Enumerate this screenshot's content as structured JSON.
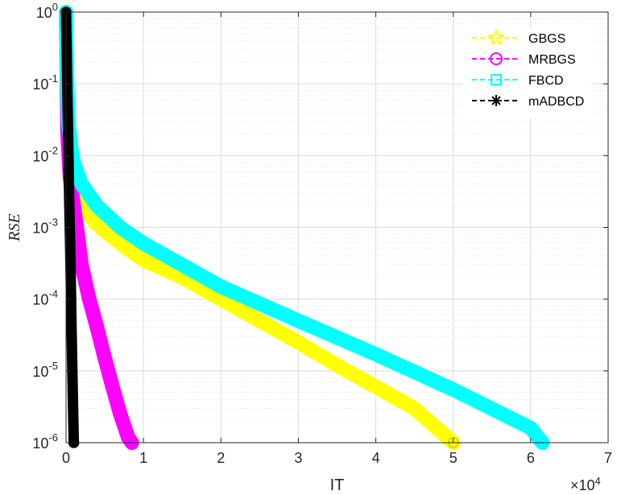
{
  "chart_data": {
    "type": "line",
    "title": "",
    "xlabel": "IT",
    "ylabel": "$RSE$",
    "x_multiplier_label": "×10",
    "x_multiplier_exponent": "4",
    "x_scale": 10000,
    "xlim": [
      0,
      70000
    ],
    "ylim": [
      1e-06,
      1
    ],
    "yscale": "log",
    "grid": true,
    "minor_grid": true,
    "x_ticks": [
      0,
      10000,
      20000,
      30000,
      40000,
      50000,
      60000,
      70000
    ],
    "x_tick_labels": [
      "0",
      "1",
      "2",
      "3",
      "4",
      "5",
      "6",
      "7"
    ],
    "y_ticks": [
      1,
      0.1,
      0.01,
      0.001,
      0.0001,
      1e-05,
      1e-06
    ],
    "y_tick_base": "10",
    "y_tick_exponents": [
      "0",
      "-1",
      "-2",
      "-3",
      "-4",
      "-5",
      "-6"
    ],
    "legend_position": "top-right",
    "series": [
      {
        "name": "GBGS",
        "color": "#ffff00",
        "marker": "pentagram",
        "line_style": "dashed",
        "x": [
          0,
          100,
          300,
          600,
          1000,
          2000,
          4000,
          7000,
          10000,
          15000,
          20000,
          25000,
          30000,
          35000,
          40000,
          45000,
          50000
        ],
        "y": [
          1,
          0.1,
          0.02,
          0.007,
          0.0035,
          0.002,
          0.0011,
          0.0006,
          0.00035,
          0.0002,
          0.0001,
          5e-05,
          2.5e-05,
          1.2e-05,
          6e-06,
          3e-06,
          1e-06
        ]
      },
      {
        "name": "MRBGS",
        "color": "#ff00ff",
        "marker": "circle",
        "line_style": "dashed",
        "x": [
          0,
          200,
          500,
          1000,
          1500,
          2000,
          3000,
          4000,
          5000,
          6000,
          7000,
          8000,
          8500
        ],
        "y": [
          1,
          0.02,
          0.005,
          0.002,
          0.0008,
          0.0003,
          0.0001,
          4e-05,
          1.5e-05,
          6e-06,
          2.5e-06,
          1.2e-06,
          1e-06
        ]
      },
      {
        "name": "FBCD",
        "color": "#00ffff",
        "marker": "square",
        "line_style": "dashed",
        "x": [
          0,
          100,
          300,
          600,
          1000,
          2000,
          4000,
          7000,
          10000,
          15000,
          20000,
          30000,
          40000,
          50000,
          60000,
          61500
        ],
        "y": [
          1,
          0.15,
          0.03,
          0.014,
          0.008,
          0.004,
          0.002,
          0.001,
          0.0006,
          0.0003,
          0.00015,
          5e-05,
          1.7e-05,
          5.5e-06,
          1.6e-06,
          1e-06
        ]
      },
      {
        "name": "mADBCD",
        "color": "#000000",
        "marker": "asterisk",
        "line_style": "dashed",
        "x": [
          0,
          100,
          200,
          300,
          400,
          500,
          600,
          700,
          800,
          900,
          1000
        ],
        "y": [
          1,
          0.2,
          0.05,
          0.012,
          0.003,
          0.0008,
          0.0002,
          5e-05,
          1.2e-05,
          3e-06,
          1e-06
        ]
      }
    ]
  }
}
